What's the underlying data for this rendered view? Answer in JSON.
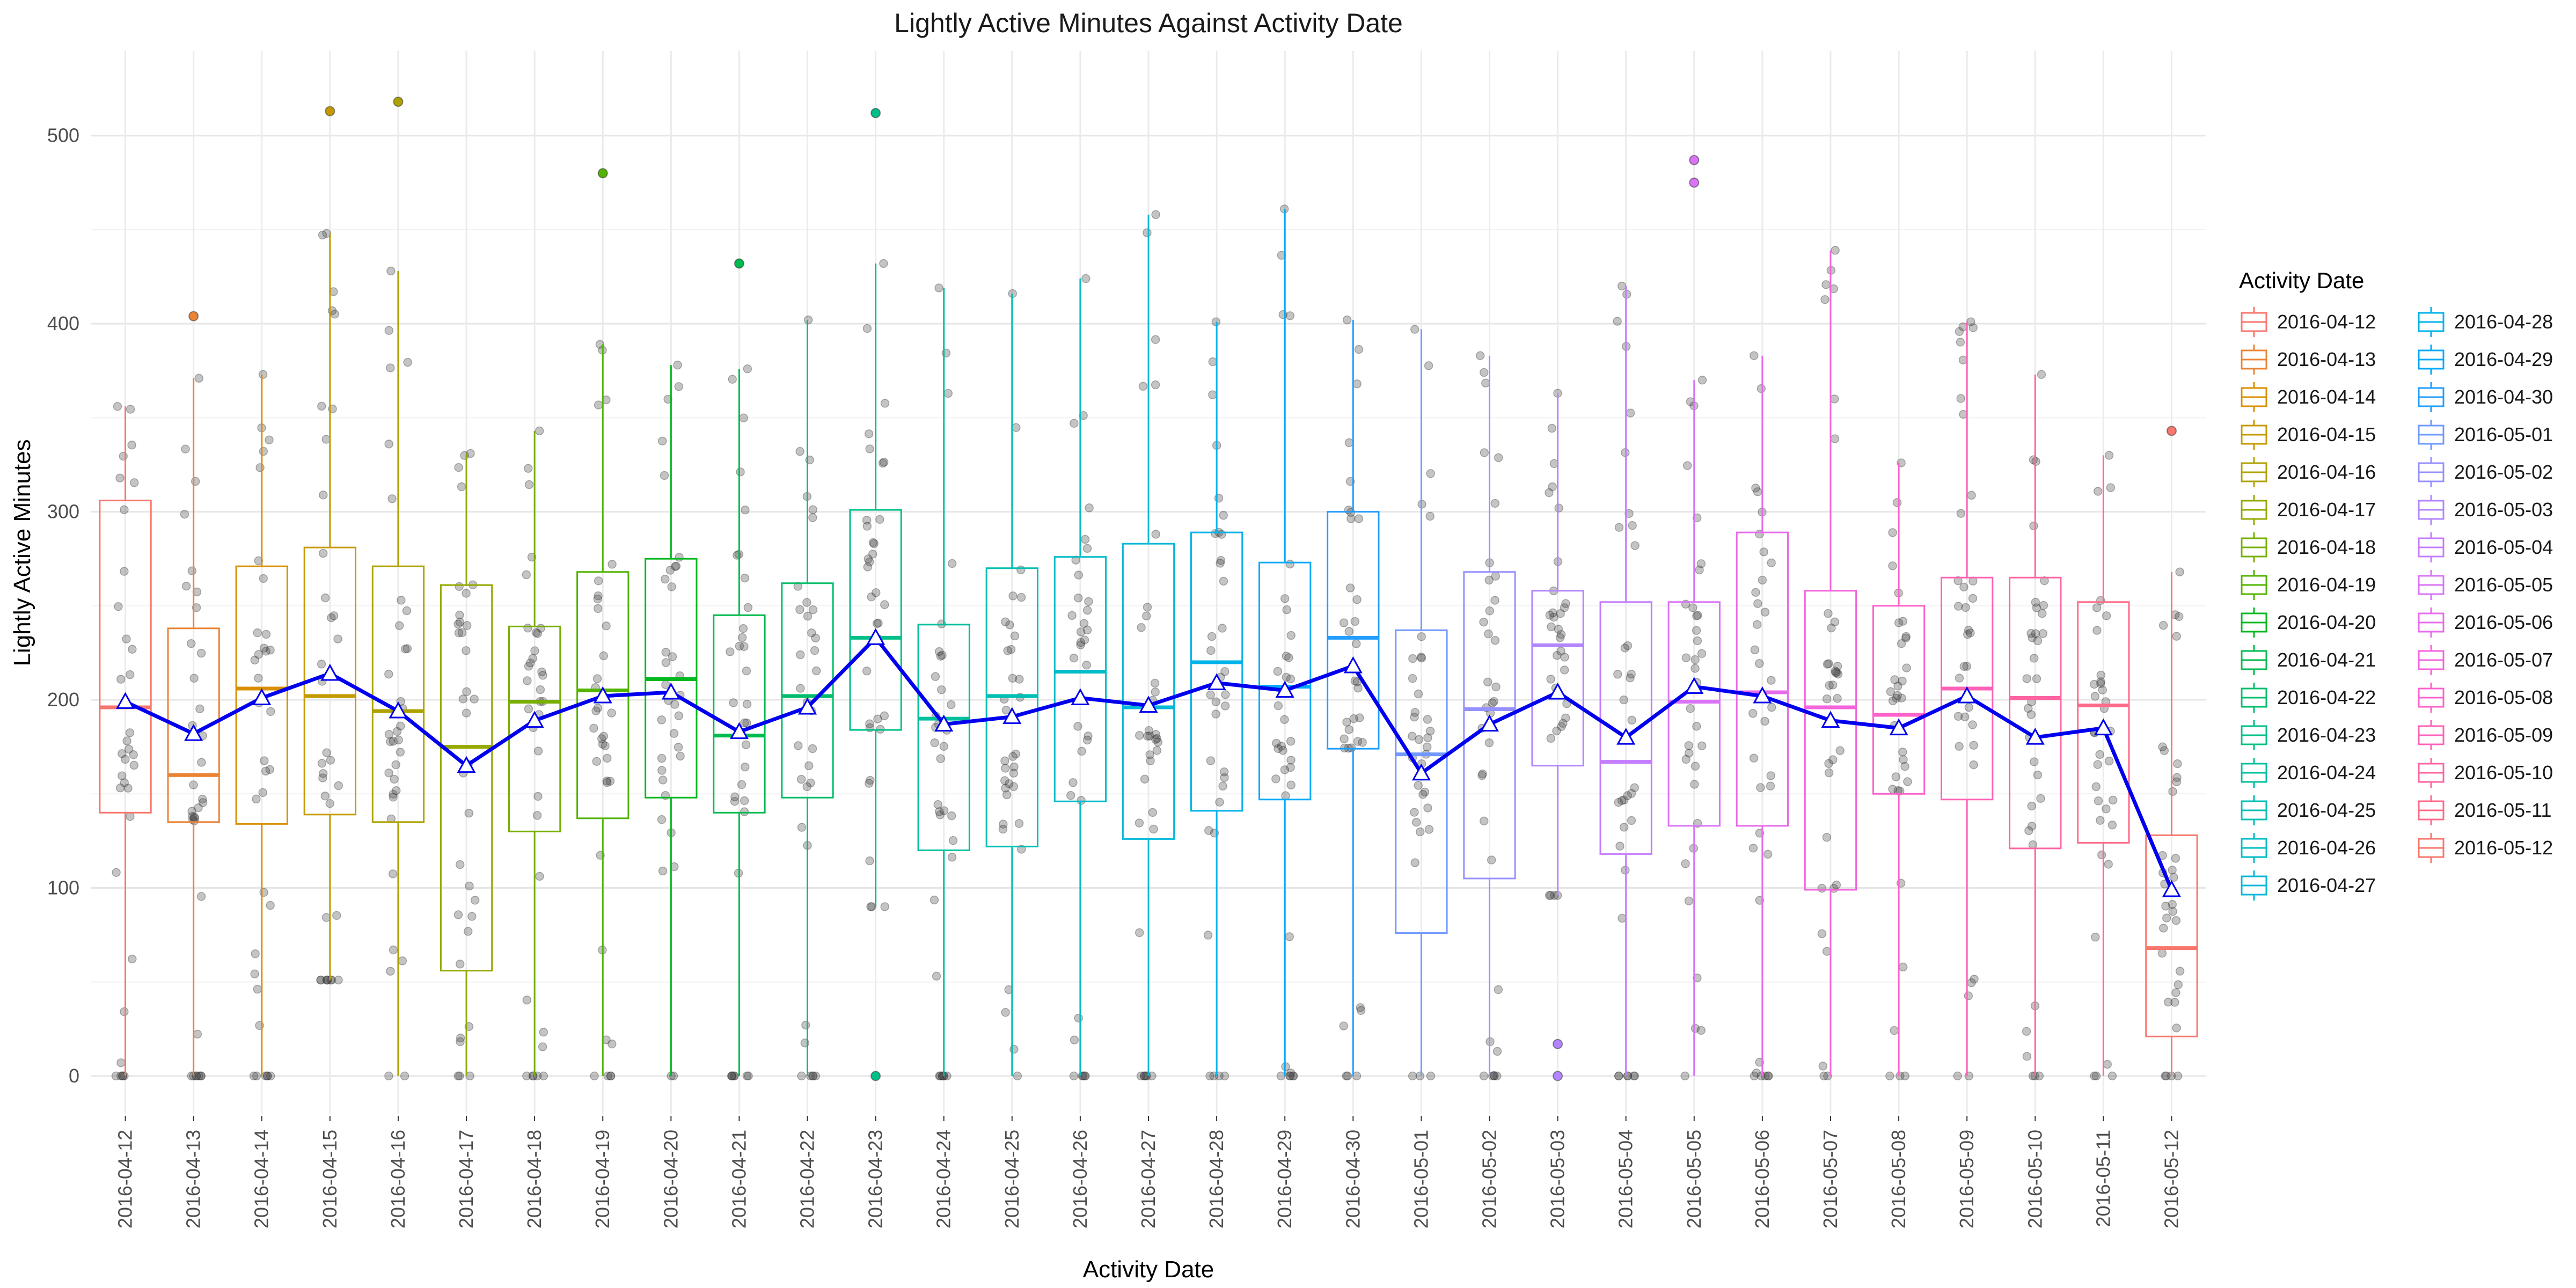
{
  "chart_data": {
    "type": "box",
    "title": "Lightly Active Minutes Against Activity Date",
    "xlabel": "Activity Date",
    "ylabel": "Lightly Active Minutes",
    "ylim": [
      -20,
      545
    ],
    "yticks": [
      0,
      100,
      200,
      300,
      400,
      500
    ],
    "grid": true,
    "legend": {
      "title": "Activity Date",
      "position": "right",
      "columns": 2
    },
    "mean_line_color": "#0000EE",
    "categories": [
      "2016-04-12",
      "2016-04-13",
      "2016-04-14",
      "2016-04-15",
      "2016-04-16",
      "2016-04-17",
      "2016-04-18",
      "2016-04-19",
      "2016-04-20",
      "2016-04-21",
      "2016-04-22",
      "2016-04-23",
      "2016-04-24",
      "2016-04-25",
      "2016-04-26",
      "2016-04-27",
      "2016-04-28",
      "2016-04-29",
      "2016-04-30",
      "2016-05-01",
      "2016-05-02",
      "2016-05-03",
      "2016-05-04",
      "2016-05-05",
      "2016-05-06",
      "2016-05-07",
      "2016-05-08",
      "2016-05-09",
      "2016-05-10",
      "2016-05-11",
      "2016-05-12"
    ],
    "colors": [
      "#F8766D",
      "#EB8335",
      "#DA8F00",
      "#C49A00",
      "#AEA200",
      "#95A900",
      "#78AF00",
      "#53B400",
      "#00B81F",
      "#00BB4E",
      "#00BE6C",
      "#00C087",
      "#00C09E",
      "#00BFB4",
      "#00BCC8",
      "#00B8DA",
      "#00B2EA",
      "#00A9F8",
      "#219EFF",
      "#7098FF",
      "#9590FF",
      "#B385FF",
      "#C67CFF",
      "#DA73F8",
      "#E76BEB",
      "#F364DD",
      "#FC61CB",
      "#FF61B7",
      "#FF64A2",
      "#FF6A88",
      "#F8766D"
    ],
    "boxes": [
      {
        "min": 0,
        "q1": 140,
        "median": 196,
        "q3": 306,
        "max": 356,
        "mean": 199,
        "outliers": []
      },
      {
        "min": 0,
        "q1": 135,
        "median": 160,
        "q3": 238,
        "max": 371,
        "mean": 182,
        "outliers": [
          404
        ]
      },
      {
        "min": 0,
        "q1": 134,
        "median": 206,
        "q3": 271,
        "max": 373,
        "mean": 201,
        "outliers": []
      },
      {
        "min": 51,
        "q1": 139,
        "median": 202,
        "q3": 281,
        "max": 448,
        "mean": 214,
        "outliers": [
          513
        ]
      },
      {
        "min": 0,
        "q1": 135,
        "median": 194,
        "q3": 271,
        "max": 428,
        "mean": 194,
        "outliers": [
          518
        ]
      },
      {
        "min": 0,
        "q1": 56,
        "median": 175,
        "q3": 261,
        "max": 331,
        "mean": 165,
        "outliers": []
      },
      {
        "min": 0,
        "q1": 130,
        "median": 199,
        "q3": 239,
        "max": 343,
        "mean": 189,
        "outliers": []
      },
      {
        "min": 0,
        "q1": 137,
        "median": 205,
        "q3": 268,
        "max": 389,
        "mean": 202,
        "outliers": [
          480
        ]
      },
      {
        "min": 0,
        "q1": 148,
        "median": 211,
        "q3": 275,
        "max": 378,
        "mean": 204,
        "outliers": []
      },
      {
        "min": 0,
        "q1": 140,
        "median": 181,
        "q3": 245,
        "max": 376,
        "mean": 183,
        "outliers": [
          432
        ]
      },
      {
        "min": 0,
        "q1": 148,
        "median": 202,
        "q3": 262,
        "max": 402,
        "mean": 196,
        "outliers": []
      },
      {
        "min": 90,
        "q1": 184,
        "median": 233,
        "q3": 301,
        "max": 432,
        "mean": 233,
        "outliers": [
          512,
          0
        ]
      },
      {
        "min": 0,
        "q1": 120,
        "median": 190,
        "q3": 240,
        "max": 419,
        "mean": 187,
        "outliers": []
      },
      {
        "min": 0,
        "q1": 122,
        "median": 202,
        "q3": 270,
        "max": 416,
        "mean": 191,
        "outliers": []
      },
      {
        "min": 0,
        "q1": 146,
        "median": 215,
        "q3": 276,
        "max": 424,
        "mean": 201,
        "outliers": []
      },
      {
        "min": 0,
        "q1": 126,
        "median": 196,
        "q3": 283,
        "max": 458,
        "mean": 197,
        "outliers": []
      },
      {
        "min": 0,
        "q1": 141,
        "median": 220,
        "q3": 289,
        "max": 401,
        "mean": 209,
        "outliers": []
      },
      {
        "min": 0,
        "q1": 147,
        "median": 207,
        "q3": 273,
        "max": 461,
        "mean": 205,
        "outliers": []
      },
      {
        "min": 0,
        "q1": 174,
        "median": 233,
        "q3": 300,
        "max": 402,
        "mean": 218,
        "outliers": []
      },
      {
        "min": 0,
        "q1": 76,
        "median": 171,
        "q3": 237,
        "max": 397,
        "mean": 161,
        "outliers": []
      },
      {
        "min": 0,
        "q1": 105,
        "median": 195,
        "q3": 268,
        "max": 383,
        "mean": 187,
        "outliers": []
      },
      {
        "min": 96,
        "q1": 165,
        "median": 229,
        "q3": 258,
        "max": 363,
        "mean": 204,
        "outliers": [
          17,
          0
        ]
      },
      {
        "min": 0,
        "q1": 118,
        "median": 167,
        "q3": 252,
        "max": 420,
        "mean": 180,
        "outliers": []
      },
      {
        "min": 0,
        "q1": 133,
        "median": 199,
        "q3": 252,
        "max": 370,
        "mean": 207,
        "outliers": [
          487,
          475
        ]
      },
      {
        "min": 0,
        "q1": 133,
        "median": 204,
        "q3": 289,
        "max": 383,
        "mean": 202,
        "outliers": []
      },
      {
        "min": 0,
        "q1": 99,
        "median": 196,
        "q3": 258,
        "max": 439,
        "mean": 189,
        "outliers": []
      },
      {
        "min": 0,
        "q1": 150,
        "median": 192,
        "q3": 250,
        "max": 326,
        "mean": 185,
        "outliers": []
      },
      {
        "min": 0,
        "q1": 147,
        "median": 206,
        "q3": 265,
        "max": 401,
        "mean": 202,
        "outliers": []
      },
      {
        "min": 0,
        "q1": 121,
        "median": 201,
        "q3": 265,
        "max": 373,
        "mean": 180,
        "outliers": []
      },
      {
        "min": 0,
        "q1": 124,
        "median": 197,
        "q3": 252,
        "max": 330,
        "mean": 185,
        "outliers": []
      },
      {
        "min": 0,
        "q1": 21,
        "median": 68,
        "q3": 128,
        "max": 268,
        "mean": 99,
        "outliers": [
          343
        ]
      }
    ]
  }
}
